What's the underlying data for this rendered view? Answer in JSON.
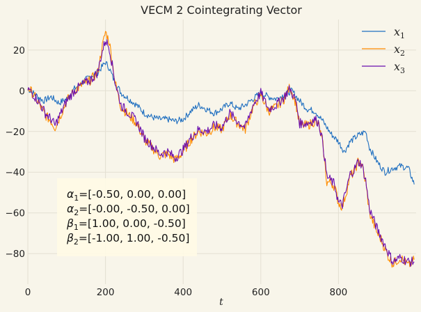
{
  "chart_data": {
    "type": "line",
    "title": "VECM 2 Cointegrating Vector",
    "xlabel": "t",
    "ylabel": "",
    "xlim": [
      0,
      1000
    ],
    "ylim": [
      -95,
      35
    ],
    "xticks": [
      0,
      200,
      400,
      600,
      800
    ],
    "yticks": [
      20,
      0,
      -20,
      -40,
      -60,
      -80
    ],
    "grid": true,
    "legend_position": "top-right",
    "series": [
      {
        "name": "x1",
        "subscript": "1",
        "color": "#1f6fc0",
        "points": [
          [
            0,
            1
          ],
          [
            20,
            -2
          ],
          [
            40,
            -5
          ],
          [
            60,
            -3
          ],
          [
            80,
            -6
          ],
          [
            100,
            -4
          ],
          [
            120,
            1
          ],
          [
            140,
            4
          ],
          [
            160,
            7
          ],
          [
            180,
            9
          ],
          [
            200,
            14
          ],
          [
            210,
            11
          ],
          [
            220,
            6
          ],
          [
            240,
            -1
          ],
          [
            260,
            -4
          ],
          [
            280,
            -7
          ],
          [
            300,
            -11
          ],
          [
            320,
            -13
          ],
          [
            340,
            -14
          ],
          [
            360,
            -14
          ],
          [
            380,
            -15
          ],
          [
            400,
            -14
          ],
          [
            420,
            -10
          ],
          [
            440,
            -7
          ],
          [
            460,
            -9
          ],
          [
            480,
            -11
          ],
          [
            500,
            -9
          ],
          [
            520,
            -6
          ],
          [
            540,
            -9
          ],
          [
            560,
            -7
          ],
          [
            580,
            -4
          ],
          [
            600,
            -1
          ],
          [
            620,
            -3
          ],
          [
            640,
            -4
          ],
          [
            660,
            -2
          ],
          [
            680,
            0
          ],
          [
            700,
            -5
          ],
          [
            720,
            -9
          ],
          [
            740,
            -10
          ],
          [
            760,
            -15
          ],
          [
            780,
            -21
          ],
          [
            800,
            -25
          ],
          [
            815,
            -30
          ],
          [
            830,
            -25
          ],
          [
            850,
            -22
          ],
          [
            870,
            -20
          ],
          [
            880,
            -28
          ],
          [
            900,
            -35
          ],
          [
            920,
            -40
          ],
          [
            940,
            -38
          ],
          [
            960,
            -37
          ],
          [
            980,
            -38
          ],
          [
            995,
            -46
          ]
        ]
      },
      {
        "name": "x2",
        "subscript": "2",
        "color": "#ff8c00",
        "points": [
          [
            0,
            2
          ],
          [
            15,
            -2
          ],
          [
            30,
            -7
          ],
          [
            45,
            -12
          ],
          [
            60,
            -15
          ],
          [
            70,
            -18
          ],
          [
            80,
            -14
          ],
          [
            100,
            -5
          ],
          [
            120,
            0
          ],
          [
            140,
            3
          ],
          [
            160,
            5
          ],
          [
            180,
            9
          ],
          [
            190,
            20
          ],
          [
            200,
            29
          ],
          [
            210,
            24
          ],
          [
            225,
            4
          ],
          [
            240,
            -8
          ],
          [
            260,
            -12
          ],
          [
            280,
            -16
          ],
          [
            300,
            -24
          ],
          [
            320,
            -28
          ],
          [
            340,
            -32
          ],
          [
            360,
            -31
          ],
          [
            380,
            -34
          ],
          [
            400,
            -30
          ],
          [
            420,
            -24
          ],
          [
            440,
            -20
          ],
          [
            460,
            -21
          ],
          [
            480,
            -18
          ],
          [
            500,
            -19
          ],
          [
            520,
            -12
          ],
          [
            540,
            -16
          ],
          [
            560,
            -19
          ],
          [
            580,
            -8
          ],
          [
            600,
            -2
          ],
          [
            620,
            -10
          ],
          [
            640,
            -8
          ],
          [
            660,
            -4
          ],
          [
            675,
            2
          ],
          [
            690,
            -6
          ],
          [
            700,
            -17
          ],
          [
            720,
            -17
          ],
          [
            740,
            -15
          ],
          [
            750,
            -17
          ],
          [
            760,
            -27
          ],
          [
            770,
            -45
          ],
          [
            780,
            -45
          ],
          [
            790,
            -47
          ],
          [
            800,
            -55
          ],
          [
            810,
            -57
          ],
          [
            820,
            -50
          ],
          [
            830,
            -42
          ],
          [
            840,
            -40
          ],
          [
            850,
            -35
          ],
          [
            860,
            -36
          ],
          [
            870,
            -45
          ],
          [
            880,
            -60
          ],
          [
            890,
            -65
          ],
          [
            900,
            -70
          ],
          [
            910,
            -73
          ],
          [
            920,
            -78
          ],
          [
            930,
            -82
          ],
          [
            940,
            -85
          ],
          [
            960,
            -82
          ],
          [
            980,
            -86
          ],
          [
            995,
            -83
          ]
        ]
      },
      {
        "name": "x3",
        "subscript": "3",
        "color": "#6a0dad",
        "points": [
          [
            0,
            1
          ],
          [
            15,
            -2
          ],
          [
            30,
            -6
          ],
          [
            45,
            -11
          ],
          [
            60,
            -14
          ],
          [
            70,
            -17
          ],
          [
            80,
            -13
          ],
          [
            100,
            -5
          ],
          [
            120,
            0
          ],
          [
            140,
            3
          ],
          [
            160,
            5
          ],
          [
            180,
            9
          ],
          [
            190,
            18
          ],
          [
            200,
            25
          ],
          [
            210,
            21
          ],
          [
            225,
            4
          ],
          [
            240,
            -7
          ],
          [
            260,
            -11
          ],
          [
            280,
            -15
          ],
          [
            300,
            -23
          ],
          [
            320,
            -27
          ],
          [
            340,
            -31
          ],
          [
            360,
            -30
          ],
          [
            380,
            -33
          ],
          [
            400,
            -29
          ],
          [
            420,
            -23
          ],
          [
            440,
            -19
          ],
          [
            460,
            -20
          ],
          [
            480,
            -17
          ],
          [
            500,
            -18
          ],
          [
            520,
            -11
          ],
          [
            540,
            -15
          ],
          [
            560,
            -18
          ],
          [
            580,
            -7
          ],
          [
            600,
            -1
          ],
          [
            620,
            -9
          ],
          [
            640,
            -7
          ],
          [
            660,
            -3
          ],
          [
            675,
            1
          ],
          [
            690,
            -5
          ],
          [
            700,
            -16
          ],
          [
            720,
            -16
          ],
          [
            740,
            -14
          ],
          [
            750,
            -16
          ],
          [
            760,
            -26
          ],
          [
            770,
            -42
          ],
          [
            780,
            -44
          ],
          [
            790,
            -46
          ],
          [
            800,
            -55
          ],
          [
            810,
            -56
          ],
          [
            820,
            -49
          ],
          [
            830,
            -41
          ],
          [
            840,
            -39
          ],
          [
            850,
            -35
          ],
          [
            860,
            -36
          ],
          [
            870,
            -44
          ],
          [
            880,
            -58
          ],
          [
            890,
            -63
          ],
          [
            900,
            -68
          ],
          [
            910,
            -72
          ],
          [
            920,
            -76
          ],
          [
            930,
            -80
          ],
          [
            940,
            -84
          ],
          [
            960,
            -82
          ],
          [
            980,
            -84
          ],
          [
            995,
            -84
          ]
        ]
      }
    ],
    "annotation": [
      {
        "sym": "α",
        "sub": "1",
        "text": "=[-0.50, 0.00, 0.00]"
      },
      {
        "sym": "α",
        "sub": "2",
        "text": "=[-0.00, -0.50, 0.00]"
      },
      {
        "sym": "β",
        "sub": "1",
        "text": "=[1.00, 0.00, -0.50]"
      },
      {
        "sym": "β",
        "sub": "2",
        "text": "=[-1.00, 1.00, -0.50]"
      }
    ]
  }
}
